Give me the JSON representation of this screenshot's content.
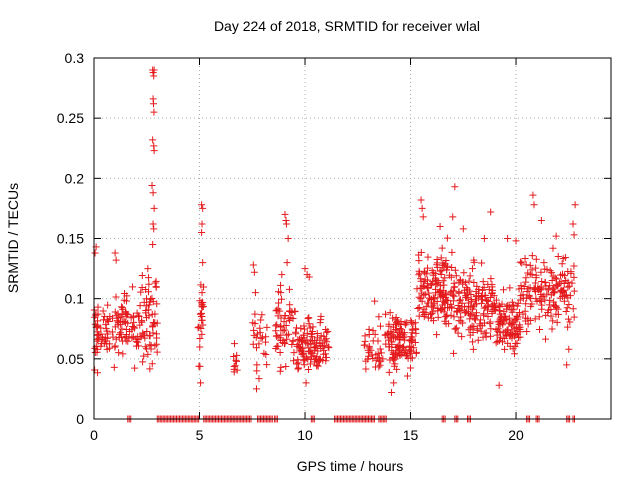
{
  "chart_data": {
    "type": "scatter",
    "title": "Day 224 of 2018, SRMTID for receiver wlal",
    "xlabel": "GPS time / hours",
    "ylabel": "SRMTID / TECUs",
    "xlim": [
      0,
      24.5
    ],
    "ylim": [
      0,
      0.3
    ],
    "x_ticks": [
      0,
      5,
      10,
      15,
      20
    ],
    "x_tick_labels": [
      "0",
      "5",
      "10",
      "15",
      "20"
    ],
    "y_ticks": [
      0,
      0.05,
      0.1,
      0.15,
      0.2,
      0.25,
      0.3
    ],
    "y_tick_labels": [
      "0",
      "0.05",
      "0.1",
      "0.15",
      "0.2",
      "0.25",
      "0.3"
    ],
    "grid": true,
    "marker": "+",
    "series": [
      {
        "name": "SRMTID",
        "color": "#e41a1c",
        "clusters": [
          {
            "x_range": [
              0.0,
              0.6
            ],
            "y_center": 0.072,
            "y_spread": 0.025,
            "count": 40
          },
          {
            "x_range": [
              0.6,
              1.2
            ],
            "y_center": 0.075,
            "y_spread": 0.025,
            "count": 30
          },
          {
            "x_range": [
              1.2,
              2.2
            ],
            "y_center": 0.078,
            "y_spread": 0.025,
            "count": 60
          },
          {
            "x_range": [
              2.2,
              3.0
            ],
            "y_center": 0.085,
            "y_spread": 0.035,
            "count": 60
          },
          {
            "x_range": [
              4.9,
              5.2
            ],
            "y_center": 0.08,
            "y_spread": 0.03,
            "count": 25
          },
          {
            "x_range": [
              6.6,
              6.8
            ],
            "y_center": 0.045,
            "y_spread": 0.012,
            "count": 10
          },
          {
            "x_range": [
              7.5,
              8.2
            ],
            "y_center": 0.065,
            "y_spread": 0.025,
            "count": 25
          },
          {
            "x_range": [
              8.6,
              9.6
            ],
            "y_center": 0.075,
            "y_spread": 0.03,
            "count": 60
          },
          {
            "x_range": [
              9.6,
              10.5
            ],
            "y_center": 0.06,
            "y_spread": 0.02,
            "count": 70
          },
          {
            "x_range": [
              10.5,
              11.2
            ],
            "y_center": 0.065,
            "y_spread": 0.02,
            "count": 40
          },
          {
            "x_range": [
              12.8,
              13.9
            ],
            "y_center": 0.06,
            "y_spread": 0.02,
            "count": 40
          },
          {
            "x_range": [
              13.9,
              15.3
            ],
            "y_center": 0.065,
            "y_spread": 0.02,
            "count": 120
          },
          {
            "x_range": [
              15.3,
              17.0
            ],
            "y_center": 0.105,
            "y_spread": 0.03,
            "count": 150
          },
          {
            "x_range": [
              17.0,
              19.0
            ],
            "y_center": 0.095,
            "y_spread": 0.028,
            "count": 160
          },
          {
            "x_range": [
              19.0,
              20.2
            ],
            "y_center": 0.08,
            "y_spread": 0.022,
            "count": 100
          },
          {
            "x_range": [
              20.2,
              22.8
            ],
            "y_center": 0.105,
            "y_spread": 0.028,
            "count": 160
          }
        ],
        "points": [
          [
            0.05,
            0.138
          ],
          [
            0.1,
            0.143
          ],
          [
            2.78,
            0.29
          ],
          [
            2.8,
            0.288
          ],
          [
            2.83,
            0.285
          ],
          [
            2.85,
            0.29
          ],
          [
            2.8,
            0.266
          ],
          [
            2.82,
            0.262
          ],
          [
            2.84,
            0.255
          ],
          [
            2.78,
            0.232
          ],
          [
            2.83,
            0.227
          ],
          [
            2.85,
            0.223
          ],
          [
            2.75,
            0.194
          ],
          [
            2.8,
            0.188
          ],
          [
            2.85,
            0.175
          ],
          [
            2.8,
            0.162
          ],
          [
            2.83,
            0.158
          ],
          [
            2.78,
            0.145
          ],
          [
            2.9,
            0.113
          ],
          [
            2.55,
            0.125
          ],
          [
            2.6,
            0.112
          ],
          [
            1.0,
            0.138
          ],
          [
            1.05,
            0.132
          ],
          [
            5.1,
            0.178
          ],
          [
            5.15,
            0.175
          ],
          [
            5.12,
            0.162
          ],
          [
            5.1,
            0.155
          ],
          [
            5.15,
            0.13
          ],
          [
            5.12,
            0.105
          ],
          [
            5.05,
            0.03
          ],
          [
            7.55,
            0.128
          ],
          [
            7.6,
            0.122
          ],
          [
            7.65,
            0.105
          ],
          [
            7.7,
            0.025
          ],
          [
            9.05,
            0.17
          ],
          [
            9.1,
            0.165
          ],
          [
            9.12,
            0.162
          ],
          [
            9.2,
            0.15
          ],
          [
            9.15,
            0.13
          ],
          [
            8.85,
            0.105
          ],
          [
            8.9,
            0.12
          ],
          [
            10.0,
            0.125
          ],
          [
            10.1,
            0.12
          ],
          [
            10.2,
            0.118
          ],
          [
            10.05,
            0.03
          ],
          [
            15.5,
            0.182
          ],
          [
            15.55,
            0.175
          ],
          [
            15.6,
            0.168
          ],
          [
            16.4,
            0.16
          ],
          [
            16.5,
            0.142
          ],
          [
            17.1,
            0.193
          ],
          [
            17.0,
            0.168
          ],
          [
            17.5,
            0.158
          ],
          [
            18.5,
            0.15
          ],
          [
            18.8,
            0.172
          ],
          [
            19.6,
            0.15
          ],
          [
            20.0,
            0.148
          ],
          [
            20.8,
            0.186
          ],
          [
            20.85,
            0.178
          ],
          [
            21.2,
            0.165
          ],
          [
            22.8,
            0.178
          ],
          [
            22.7,
            0.162
          ],
          [
            22.75,
            0.153
          ],
          [
            21.9,
            0.152
          ],
          [
            22.0,
            0.135
          ],
          [
            22.4,
            0.045
          ],
          [
            22.5,
            0.058
          ],
          [
            14.1,
            0.022
          ],
          [
            14.2,
            0.03
          ],
          [
            19.2,
            0.028
          ],
          [
            13.3,
            0.098
          ],
          [
            13.5,
            0.085
          ]
        ],
        "zero_segments": [
          [
            1.6,
            1.75
          ],
          [
            3.0,
            5.0
          ],
          [
            5.2,
            7.45
          ],
          [
            7.75,
            8.5
          ],
          [
            8.55,
            8.75
          ],
          [
            10.3,
            10.45
          ],
          [
            11.4,
            13.3
          ],
          [
            13.5,
            13.9
          ],
          [
            16.5,
            16.7
          ],
          [
            17.1,
            17.3
          ],
          [
            17.7,
            17.85
          ],
          [
            20.5,
            20.65
          ],
          [
            20.95,
            21.15
          ],
          [
            22.4,
            22.55
          ],
          [
            22.7,
            22.8
          ]
        ]
      }
    ]
  }
}
